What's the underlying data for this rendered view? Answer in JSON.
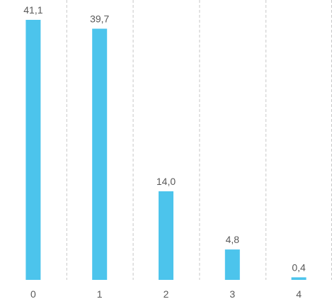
{
  "chart_data": {
    "type": "bar",
    "categories": [
      "0",
      "1",
      "2",
      "3",
      "4"
    ],
    "values": [
      41.1,
      39.7,
      14.0,
      4.8,
      0.4
    ],
    "value_labels": [
      "41,1",
      "39,7",
      "14,0",
      "4,8",
      "0,4"
    ],
    "title": "",
    "xlabel": "",
    "ylabel": "",
    "ylim": [
      0,
      41.1
    ],
    "grid": "vertical dashed lines between categories",
    "bar_color": "#4cc4ec",
    "label_color": "#595959",
    "grid_color": "#c8c8c8"
  }
}
